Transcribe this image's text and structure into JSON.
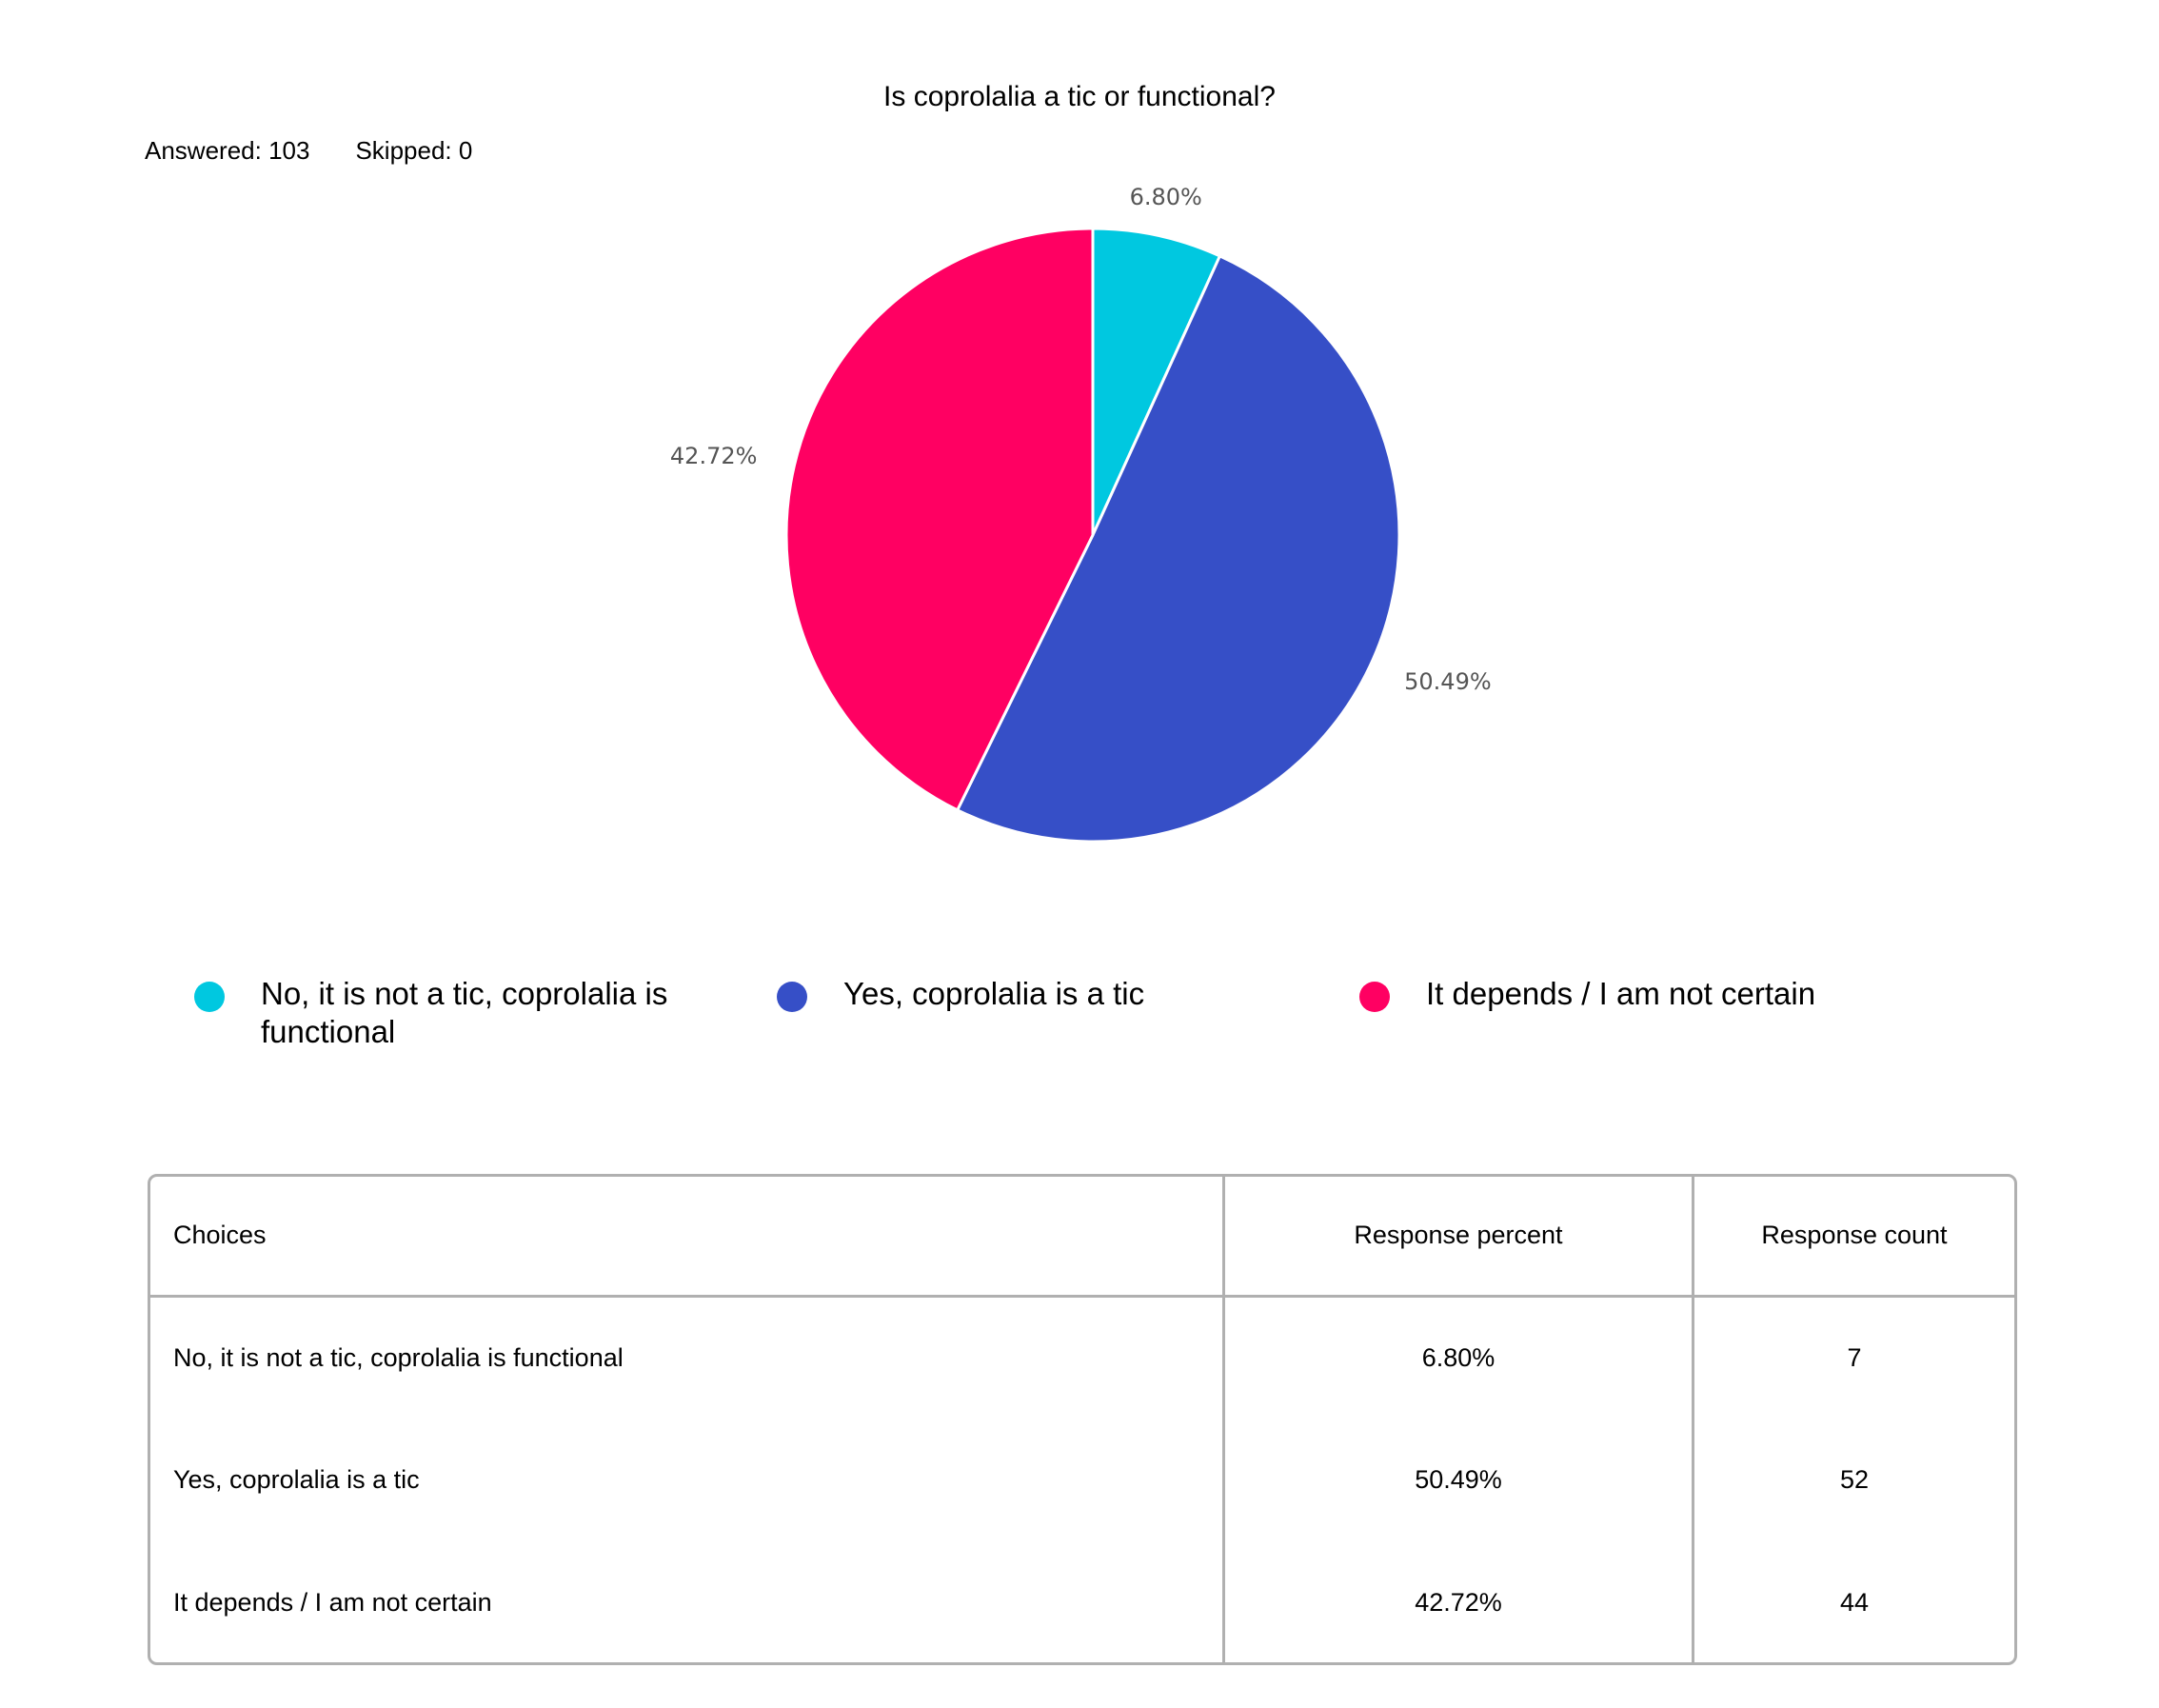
{
  "question": {
    "title": "Is coprolalia a tic or functional?",
    "answered_label": "Answered: 103",
    "skipped_label": "Skipped: 0"
  },
  "chart_data": {
    "type": "pie",
    "categories": [
      "No, it is not a tic, coprolalia is functional",
      "Yes, coprolalia is a tic",
      "It depends / I am not certain"
    ],
    "values": [
      6.8,
      50.49,
      42.72
    ],
    "labels": [
      "6.80%",
      "50.49%",
      "42.72%"
    ],
    "colors": [
      "#00c8e0",
      "#364fc7",
      "#ff0062"
    ],
    "legend_position": "bottom",
    "legend": [
      {
        "label": "No, it is not a tic, coprolalia is functional",
        "color": "#00c8e0"
      },
      {
        "label": "Yes, coprolalia is a tic",
        "color": "#364fc7"
      },
      {
        "label": "It depends / I am not certain",
        "color": "#ff0062"
      }
    ]
  },
  "table": {
    "headers": [
      "Choices",
      "Response percent",
      "Response count"
    ],
    "rows": [
      {
        "choice": "No, it is not a tic, coprolalia is functional",
        "percent": "6.80%",
        "count": "7"
      },
      {
        "choice": "Yes, coprolalia is a tic",
        "percent": "50.49%",
        "count": "52"
      },
      {
        "choice": "It depends / I am not certain",
        "percent": "42.72%",
        "count": "44"
      }
    ]
  }
}
